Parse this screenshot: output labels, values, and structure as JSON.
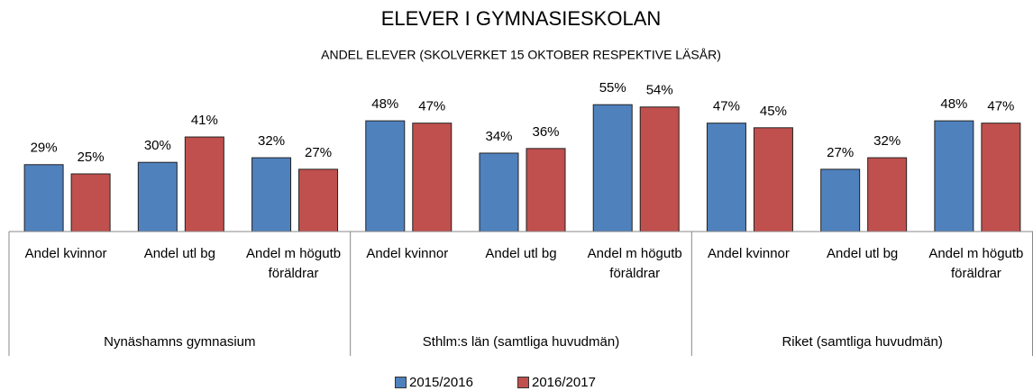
{
  "chart_data": {
    "type": "bar",
    "title": "ELEVER I GYMNASIESKOLAN",
    "subtitle": "ANDEL ELEVER (SKOLVERKET 15 OKTOBER RESPEKTIVE LÄSÅR)",
    "groups": [
      "Nynäshamns gymnasium",
      "Sthlm:s län (samtliga huvudmän)",
      "Riket (samtliga huvudmän)"
    ],
    "categories": [
      "Andel kvinnor",
      "Andel utl bg",
      "Andel m högutb föräldrar",
      "Andel kvinnor",
      "Andel utl bg",
      "Andel m högutb föräldrar",
      "Andel kvinnor",
      "Andel utl bg",
      "Andel m högutb föräldrar"
    ],
    "series": [
      {
        "name": "2015/2016",
        "color": "#4f81bd",
        "values": [
          29,
          30,
          32,
          48,
          34,
          55,
          47,
          27,
          48
        ],
        "value_labels": [
          "29%",
          "30%",
          "32%",
          "48%",
          "34%",
          "55%",
          "47%",
          "27%",
          "48%"
        ]
      },
      {
        "name": "2016/2017",
        "color": "#c0504d",
        "values": [
          25,
          41,
          27,
          47,
          36,
          54,
          45,
          32,
          47
        ],
        "value_labels": [
          "25%",
          "41%",
          "27%",
          "47%",
          "36%",
          "54%",
          "45%",
          "32%",
          "47%"
        ]
      }
    ],
    "legend": "bottom"
  }
}
